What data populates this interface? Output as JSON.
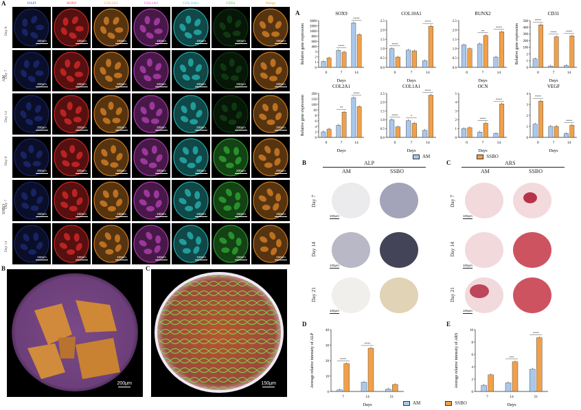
{
  "panel_labels": {
    "A_left": "A",
    "B_left": "B",
    "C_left": "C",
    "A_right": "A",
    "B_right": "B",
    "C_right": "C",
    "D_right": "D",
    "E_right": "E"
  },
  "if_columns": [
    "DAPI",
    "SOX9",
    "COL2A1",
    "COL1A1",
    "COL10A1",
    "CD31",
    "Merge"
  ],
  "if_column_colors": [
    "#3d5bff",
    "#ff3030",
    "#ff9a2e",
    "#d64bd6",
    "#2fd3d3",
    "#39c43a",
    "#ff9a2e"
  ],
  "if_groups": [
    "AM",
    "SSBO"
  ],
  "if_rows": [
    {
      "label": "Day 0",
      "scales": [
        "150μm",
        "150μm",
        "150μm",
        "150μm",
        "150μm",
        "150μm",
        "150μm"
      ]
    },
    {
      "label": "Day 7",
      "scales": [
        "200μm",
        "200μm",
        "200μm",
        "200μm",
        "200μm",
        "200μm",
        "200μm"
      ]
    },
    {
      "label": "Day 14",
      "scales": [
        "200μm",
        "200μm",
        "200μm",
        "200μm",
        "200μm",
        "200μm",
        "200μm"
      ]
    },
    {
      "label": "Day 0",
      "scales": [
        "200μm",
        "200μm",
        "200μm",
        "200μm",
        "200μm",
        "200μm",
        "200μm"
      ]
    },
    {
      "label": "Day 7",
      "scales": [
        "150μm",
        "150μm",
        "150μm",
        "150μm",
        "150μm",
        "150μm",
        "150μm"
      ]
    },
    {
      "label": "Day 14",
      "scales": [
        "150μm",
        "150μm",
        "150μm",
        "150μm",
        "150μm",
        "150μm",
        "150μm"
      ]
    }
  ],
  "big_images": {
    "B_scale": "200μm",
    "C_scale": "150μm"
  },
  "chart_data": [
    {
      "type": "bar",
      "title": "SOX9",
      "ylabel": "Relative gene expression",
      "xlabel": "Days",
      "categories": [
        "0",
        "7",
        "14"
      ],
      "series": [
        {
          "name": "AM",
          "values": [
            1.0,
            2.9,
            7.6
          ]
        },
        {
          "name": "SSBO",
          "values": [
            1.6,
            2.6,
            5.6
          ]
        }
      ],
      "ymax": 8,
      "ticks": [
        "0",
        "1",
        "2",
        "3",
        "400",
        "600",
        "800",
        "1000",
        "2000",
        "3000"
      ],
      "sig": [
        "",
        "****",
        "****"
      ]
    },
    {
      "type": "bar",
      "title": "COL10A1",
      "ylabel": "",
      "xlabel": "Days",
      "categories": [
        "0",
        "7",
        "14"
      ],
      "series": [
        {
          "name": "AM",
          "values": [
            1.0,
            0.92,
            0.35
          ]
        },
        {
          "name": "SSBO",
          "values": [
            0.55,
            0.88,
            2.2
          ]
        }
      ],
      "ymax": 2.5,
      "ticks": [
        "0.0",
        "0.5",
        "1.0",
        "1.5",
        "2.0",
        "2.5"
      ],
      "sig": [
        "****",
        "",
        "****"
      ]
    },
    {
      "type": "bar",
      "title": "RUNX2",
      "ylabel": "",
      "xlabel": "Days",
      "categories": [
        "0",
        "7",
        "14"
      ],
      "series": [
        {
          "name": "AM",
          "values": [
            1.2,
            1.25,
            0.55
          ]
        },
        {
          "name": "SSBO",
          "values": [
            1.0,
            1.7,
            1.9
          ]
        }
      ],
      "ymax": 2.5,
      "ticks": [
        "0.0",
        "0.5",
        "1.0",
        "1.5",
        "2.0",
        "2.5"
      ],
      "sig": [
        "",
        "**",
        "****"
      ]
    },
    {
      "type": "bar",
      "title": "CD31",
      "ylabel": "Relative gene expression",
      "xlabel": "Days",
      "categories": [
        "0",
        "7",
        "14"
      ],
      "series": [
        {
          "name": "AM",
          "values": [
            1.0,
            0.15,
            0.2
          ]
        },
        {
          "name": "SSBO",
          "values": [
            5.0,
            3.6,
            3.7
          ]
        }
      ],
      "ymax": 5.5,
      "ticks": [
        "0",
        "1",
        "2",
        "100",
        "200",
        "300",
        "400",
        "500"
      ],
      "sig": [
        "****",
        "****",
        "****"
      ]
    },
    {
      "type": "bar",
      "title": "COL2A1",
      "ylabel": "Relative gene expression",
      "xlabel": "Days",
      "categories": [
        "0",
        "7",
        "14"
      ],
      "series": [
        {
          "name": "AM",
          "values": [
            1.0,
            2.2,
            7.2
          ]
        },
        {
          "name": "SSBO",
          "values": [
            1.5,
            4.6,
            5.6
          ]
        }
      ],
      "ymax": 8,
      "ticks": [
        "0",
        "2",
        "4",
        "6",
        "8",
        "10",
        "100",
        "150",
        "200"
      ],
      "sig": [
        "",
        "**",
        "****"
      ]
    },
    {
      "type": "bar",
      "title": "COL1A1",
      "ylabel": "",
      "xlabel": "Days",
      "categories": [
        "0",
        "7",
        "14"
      ],
      "series": [
        {
          "name": "AM",
          "values": [
            1.0,
            0.95,
            0.4
          ]
        },
        {
          "name": "SSBO",
          "values": [
            0.6,
            0.8,
            2.4
          ]
        }
      ],
      "ymax": 2.5,
      "ticks": [
        "0.0",
        "0.5",
        "1.0",
        "1.5",
        "2.0",
        "2.5"
      ],
      "sig": [
        "****",
        "*",
        "****"
      ]
    },
    {
      "type": "bar",
      "title": "OCN",
      "ylabel": "",
      "xlabel": "Days",
      "categories": [
        "0",
        "7",
        "14"
      ],
      "series": [
        {
          "name": "AM",
          "values": [
            1.0,
            0.6,
            0.45
          ]
        },
        {
          "name": "SSBO",
          "values": [
            1.1,
            1.6,
            3.8
          ]
        }
      ],
      "ymax": 5,
      "ticks": [
        "0",
        "1",
        "2",
        "3",
        "4",
        "5"
      ],
      "sig": [
        "",
        "****",
        "****"
      ]
    },
    {
      "type": "bar",
      "title": "VEGF",
      "ylabel": "",
      "xlabel": "Days",
      "categories": [
        "0",
        "7",
        "14"
      ],
      "series": [
        {
          "name": "AM",
          "values": [
            1.2,
            1.0,
            0.35
          ]
        },
        {
          "name": "SSBO",
          "values": [
            3.3,
            1.0,
            1.1
          ]
        }
      ],
      "ymax": 4,
      "ticks": [
        "0",
        "1",
        "2",
        "3",
        "4"
      ],
      "sig": [
        "****",
        "",
        "****"
      ]
    },
    {
      "type": "bar",
      "title": "",
      "ylabel": "Average relative intensity of ALP",
      "xlabel": "Days",
      "categories": [
        "7",
        "14",
        "21"
      ],
      "series": [
        {
          "name": "AM",
          "values": [
            1.0,
            6.0,
            1.5
          ]
        },
        {
          "name": "SSBO",
          "values": [
            18.0,
            28.0,
            4.5
          ]
        }
      ],
      "ymax": 40,
      "ticks": [
        "0",
        "10",
        "20",
        "30",
        "40"
      ],
      "sig": [
        "****",
        "****",
        ""
      ]
    },
    {
      "type": "bar",
      "title": "",
      "ylabel": "Average relative intensity of ARS",
      "xlabel": "Days",
      "categories": [
        "7",
        "14",
        "21"
      ],
      "series": [
        {
          "name": "AM",
          "values": [
            1.0,
            1.4,
            3.6
          ]
        },
        {
          "name": "SSBO",
          "values": [
            2.7,
            4.8,
            8.7
          ]
        }
      ],
      "ymax": 10,
      "ticks": [
        "0",
        "2",
        "4",
        "6",
        "8",
        "10"
      ],
      "sig": [
        "",
        "***",
        "****"
      ]
    }
  ],
  "legend": {
    "am": "AM",
    "ssbo": "SSBO"
  },
  "colors": {
    "am": "#a9c8ec",
    "ssbo": "#f0a04b"
  },
  "stain": {
    "alp_title": "ALP",
    "ars_title": "ARS",
    "group_am": "AM",
    "group_ssbo": "SSBO",
    "rows": [
      "Day 7",
      "Day 14",
      "Day 21"
    ],
    "scale": "100μm"
  }
}
